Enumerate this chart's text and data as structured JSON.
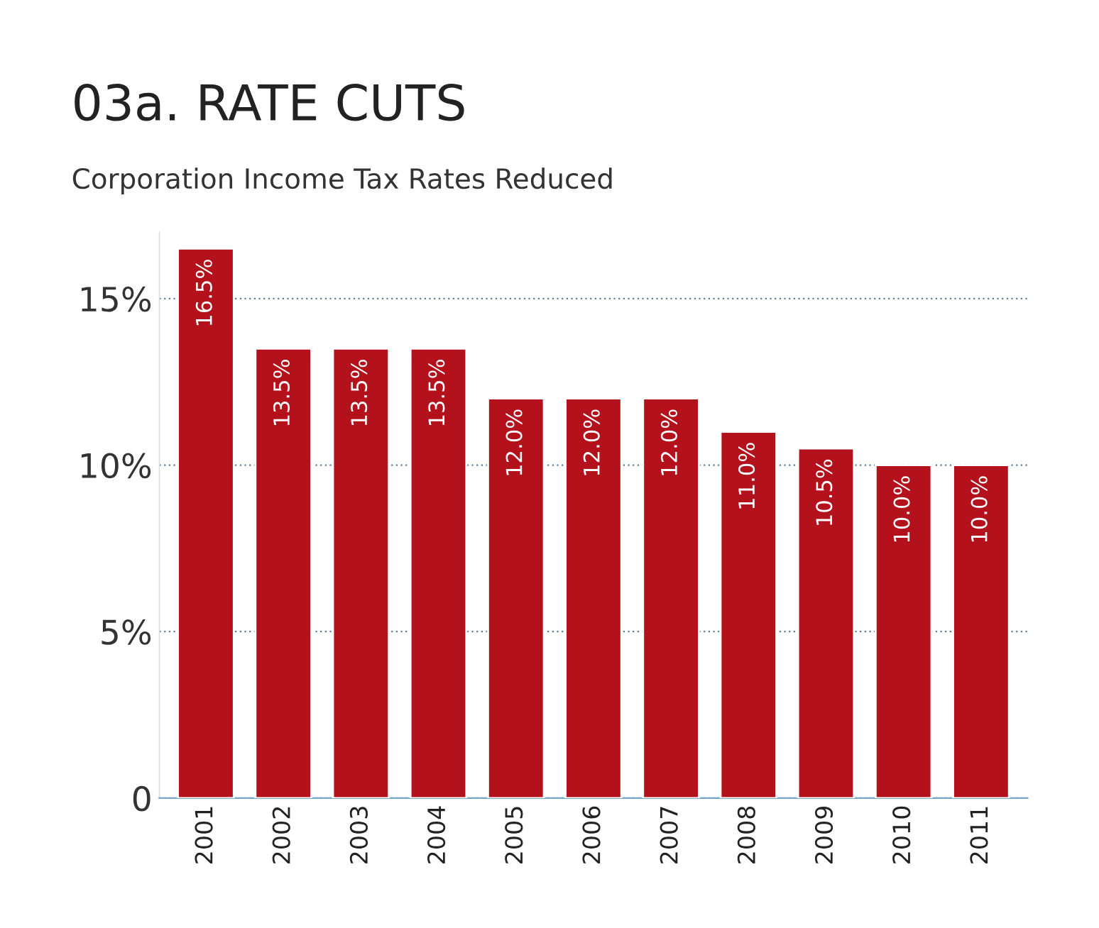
{
  "chart_data": {
    "type": "bar",
    "title": "03a. RATE CUTS",
    "subtitle": "Corporation Income Tax Rates Reduced",
    "categories": [
      "2001",
      "2002",
      "2003",
      "2004",
      "2005",
      "2006",
      "2007",
      "2008",
      "2009",
      "2010",
      "2011"
    ],
    "values": [
      16.5,
      13.5,
      13.5,
      13.5,
      12.0,
      12.0,
      12.0,
      11.0,
      10.5,
      10.0,
      10.0
    ],
    "value_labels": [
      "16.5%",
      "13.5%",
      "13.5%",
      "13.5%",
      "12.0%",
      "12.0%",
      "12.0%",
      "11.0%",
      "10.5%",
      "10.0%",
      "10.0%"
    ],
    "color": "#b3111b",
    "ylim": [
      0,
      17
    ],
    "yticks": [
      0,
      {
        "value": 5,
        "label": "5%"
      },
      {
        "value": 10,
        "label": "10%"
      },
      {
        "value": 15,
        "label": "15%"
      }
    ],
    "grid": "y"
  }
}
